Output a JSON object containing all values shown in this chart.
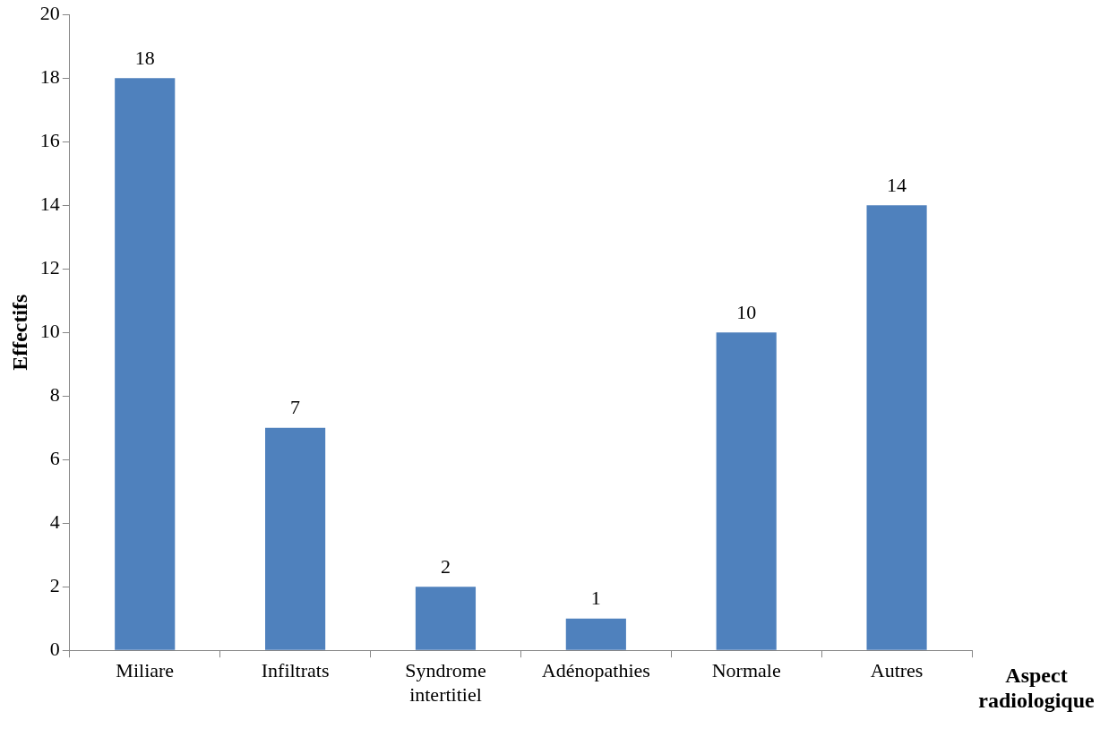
{
  "chart_data": {
    "type": "bar",
    "xlabel": "Aspect radiologique",
    "ylabel": "Effectifs",
    "categories": [
      "Miliare",
      "Infiltrats",
      "Syndrome intertitiel",
      "Adénopathies",
      "Normale",
      "Autres"
    ],
    "values": [
      18,
      7,
      2,
      1,
      10,
      14
    ],
    "color": "#4f81bd",
    "ylim": [
      0,
      20
    ],
    "yticks": [
      0,
      2,
      4,
      6,
      8,
      10,
      12,
      14,
      16,
      18,
      20
    ],
    "grid": false,
    "legend": false,
    "data_labels": true
  }
}
